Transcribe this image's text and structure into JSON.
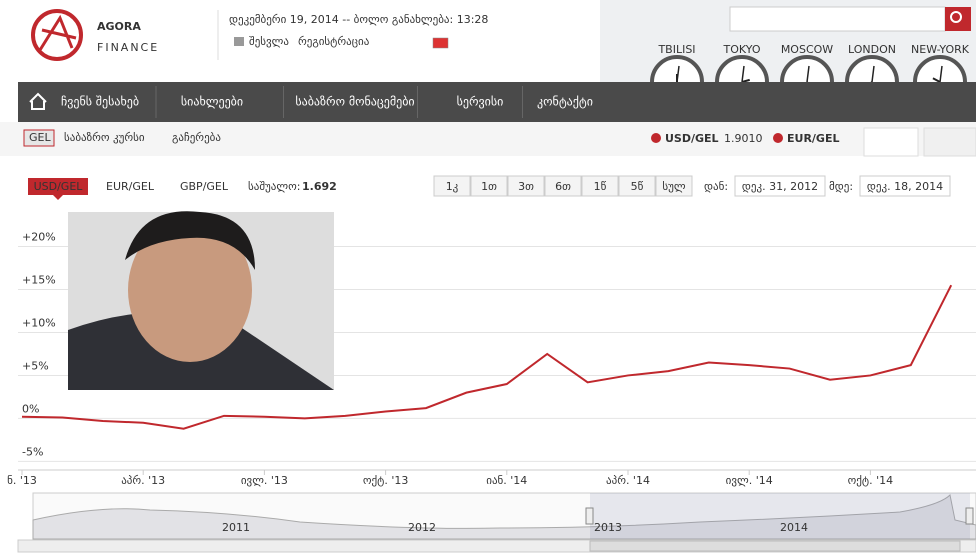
{
  "header": {
    "logo": [
      "AGORA",
      "FINANCE"
    ],
    "date": "დეკემბერი 19, 2014 -- ბოლო განახლება: 13:28",
    "login": "შესვლა",
    "register": "რეგისტრაცია",
    "clocks": [
      "TBILISI",
      "TOKYO",
      "MOSCOW",
      "LONDON",
      "NEW-YORK"
    ]
  },
  "nav": [
    "ჩვენს შესახებ",
    "სიახლეები",
    "საბაზრო მონაცემები",
    "სერვისი",
    "კონტაქტი"
  ],
  "subbar": {
    "currency": "GEL",
    "rate_link": "საბაზრო კურსი",
    "stop": "გაჩერება",
    "usd": "USD/GEL",
    "usd_rate": "1.9010",
    "eur": "EUR/GEL"
  },
  "chart_panel": {
    "tabs": [
      "USD/GEL",
      "EUR/GEL",
      "GBP/GEL"
    ],
    "average_label": "საშუალო:",
    "average": "1.692",
    "ranges": [
      "1კ",
      "1თ",
      "3თ",
      "6თ",
      "1წ",
      "5წ",
      "სულ"
    ],
    "from_label": "დან:",
    "from": "დეკ. 31, 2012",
    "to_label": "მდე:",
    "to": "დეკ. 18, 2014",
    "navigator_years": [
      "2011",
      "2012",
      "2013",
      "2014"
    ]
  },
  "chart_data": {
    "type": "line",
    "x": [
      "2013-01",
      "2013-02",
      "2013-03",
      "2013-04",
      "2013-05",
      "2013-06",
      "2013-07",
      "2013-08",
      "2013-09",
      "2013-10",
      "2013-11",
      "2013-12",
      "2014-01",
      "2014-02",
      "2014-03",
      "2014-04",
      "2014-05",
      "2014-06",
      "2014-07",
      "2014-08",
      "2014-09",
      "2014-10",
      "2014-11",
      "2014-12"
    ],
    "values": [
      0.2,
      0.1,
      -0.3,
      -0.5,
      -1.2,
      0.3,
      0.2,
      0,
      0.3,
      0.8,
      1.2,
      3,
      4,
      7.5,
      4.2,
      5,
      5.5,
      6.5,
      6.2,
      5.8,
      4.5,
      5,
      6.2,
      15.5
    ],
    "color": "#c0282d",
    "ylim": [
      -6,
      22.5
    ],
    "yticks": [
      {
        "value": -5,
        "label": "-5%"
      },
      {
        "value": 0,
        "label": "0%"
      },
      {
        "value": 5,
        "label": "+5%"
      },
      {
        "value": 10,
        "label": "+10%"
      },
      {
        "value": 15,
        "label": "+15%"
      },
      {
        "value": 20,
        "label": "+20%"
      }
    ],
    "xticks": [
      {
        "value": "2013-01",
        "label": "ნ. '13"
      },
      {
        "value": "2013-04",
        "label": "აპრ. '13"
      },
      {
        "value": "2013-07",
        "label": "ივლ. '13"
      },
      {
        "value": "2013-10",
        "label": "ოქტ. '13"
      },
      {
        "value": "2014-01",
        "label": "იან. '14"
      },
      {
        "value": "2014-04",
        "label": "აპრ. '14"
      },
      {
        "value": "2014-07",
        "label": "ივლ. '14"
      },
      {
        "value": "2014-10",
        "label": "ოქტ. '14"
      }
    ],
    "grid": true
  }
}
